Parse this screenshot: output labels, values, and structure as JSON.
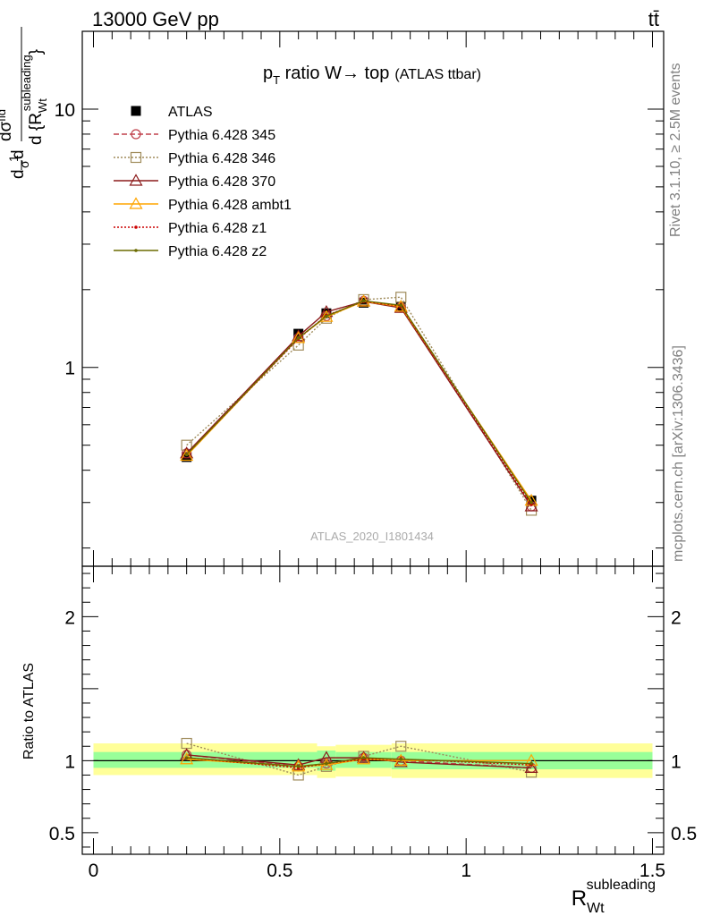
{
  "header": {
    "energy_label": "13000 GeV pp",
    "process_label": "tt̄",
    "rivet_label": "Rivet 3.1.10, ≥ 2.5M events",
    "mcplots_label": "mcplots.cern.ch [arXiv:1306.3436]",
    "analysis_label": "ATLAS_2020_I1801434"
  },
  "title": {
    "p": "p",
    "sub": "T",
    "main": " ratio W→ top",
    "small": "(ATLAS ttbar)"
  },
  "ylabel_main": {
    "d1": "d",
    "one": "1",
    "sigma1": "σ",
    "d2": "d",
    "dsigma": "dσ",
    "fid": "fid",
    "denom": "d {R",
    "sub": "Wt",
    "sup": "subleading",
    "brace": "}"
  },
  "ylabel_ratio": "Ratio to ATLAS",
  "xlabel": {
    "main": "R",
    "sub": "Wt",
    "sup": "subleading"
  },
  "chart_data": [
    {
      "type": "line",
      "panel": "main",
      "yscale": "log",
      "xlim": [
        -0.03,
        1.53
      ],
      "ylim": [
        0.17,
        20
      ],
      "yticks": [
        {
          "v": 1,
          "label": "1"
        },
        {
          "v": 10,
          "label": "10"
        }
      ],
      "x": [
        0.25,
        0.55,
        0.625,
        0.725,
        0.825,
        1.175
      ],
      "series": [
        {
          "name": "ATLAS",
          "color": "#000000",
          "marker": "square-filled",
          "dash": "none",
          "values": [
            0.45,
            1.35,
            1.62,
            1.78,
            1.72,
            0.305
          ]
        },
        {
          "name": "Pythia 6.428 345",
          "color": "#c0404b",
          "marker": "circle",
          "dash": "6,3",
          "values": [
            0.465,
            1.3,
            1.58,
            1.81,
            1.71,
            0.29
          ]
        },
        {
          "name": "Pythia 6.428 346",
          "color": "#a08c5c",
          "marker": "square",
          "dash": "2,2",
          "values": [
            0.5,
            1.22,
            1.55,
            1.83,
            1.87,
            0.28
          ]
        },
        {
          "name": "Pythia 6.428 370",
          "color": "#8b1a1a",
          "marker": "triangle",
          "dash": "none",
          "values": [
            0.465,
            1.32,
            1.64,
            1.8,
            1.7,
            0.29
          ]
        },
        {
          "name": "Pythia 6.428 ambt1",
          "color": "#ffa500",
          "marker": "triangle",
          "dash": "none",
          "values": [
            0.455,
            1.3,
            1.57,
            1.8,
            1.72,
            0.305
          ]
        },
        {
          "name": "Pythia 6.428 z1",
          "color": "#cc0000",
          "marker": "dot",
          "dash": "2,2",
          "values": [
            0.46,
            1.29,
            1.59,
            1.8,
            1.73,
            0.295
          ]
        },
        {
          "name": "Pythia 6.428 z2",
          "color": "#6b6b00",
          "marker": "dot",
          "dash": "none",
          "values": [
            0.46,
            1.3,
            1.58,
            1.81,
            1.74,
            0.3
          ]
        }
      ]
    },
    {
      "type": "line",
      "panel": "ratio",
      "xlim": [
        -0.03,
        1.53
      ],
      "ylim": [
        0.35,
        2.35
      ],
      "yticks": [
        {
          "v": 0.5,
          "label": "0.5"
        },
        {
          "v": 1,
          "label": "1"
        },
        {
          "v": 2,
          "label": "2"
        }
      ],
      "xticks": [
        {
          "v": 0,
          "label": "0"
        },
        {
          "v": 0.5,
          "label": "0.5"
        },
        {
          "v": 1,
          "label": "1"
        },
        {
          "v": 1.5,
          "label": "1.5"
        }
      ],
      "x": [
        0.25,
        0.55,
        0.625,
        0.725,
        0.825,
        1.175
      ],
      "bands": {
        "edges": [
          0.0,
          0.6,
          0.65,
          0.8,
          1.5
        ],
        "inner": [
          [
            0.95,
            1.06
          ],
          [
            0.93,
            1.07
          ],
          [
            0.95,
            1.06
          ],
          [
            0.94,
            1.06
          ]
        ],
        "outer": [
          [
            0.9,
            1.12
          ],
          [
            0.88,
            1.1
          ],
          [
            0.89,
            1.11
          ],
          [
            0.88,
            1.12
          ]
        ],
        "inner_color": "#99ff99",
        "outer_color": "#ffff99"
      },
      "series": [
        {
          "name": "Pythia 6.428 345",
          "color": "#c0404b",
          "marker": "circle",
          "dash": "6,3",
          "values": [
            1.04,
            0.96,
            0.98,
            1.02,
            1.0,
            0.95
          ]
        },
        {
          "name": "Pythia 6.428 346",
          "color": "#a08c5c",
          "marker": "square",
          "dash": "2,2",
          "values": [
            1.12,
            0.9,
            0.96,
            1.03,
            1.1,
            0.92
          ]
        },
        {
          "name": "Pythia 6.428 370",
          "color": "#8b1a1a",
          "marker": "triangle",
          "dash": "none",
          "values": [
            1.04,
            0.97,
            1.02,
            1.02,
            0.99,
            0.95
          ]
        },
        {
          "name": "Pythia 6.428 ambt1",
          "color": "#ffa500",
          "marker": "triangle",
          "dash": "none",
          "values": [
            1.01,
            0.96,
            0.97,
            1.01,
            1.0,
            1.0
          ]
        },
        {
          "name": "Pythia 6.428 z1",
          "color": "#cc0000",
          "marker": "dot",
          "dash": "2,2",
          "values": [
            1.02,
            0.95,
            0.98,
            1.01,
            1.01,
            0.97
          ]
        },
        {
          "name": "Pythia 6.428 z2",
          "color": "#6b6b00",
          "marker": "dot",
          "dash": "none",
          "values": [
            1.02,
            0.96,
            0.98,
            1.02,
            1.01,
            0.98
          ]
        }
      ]
    }
  ]
}
